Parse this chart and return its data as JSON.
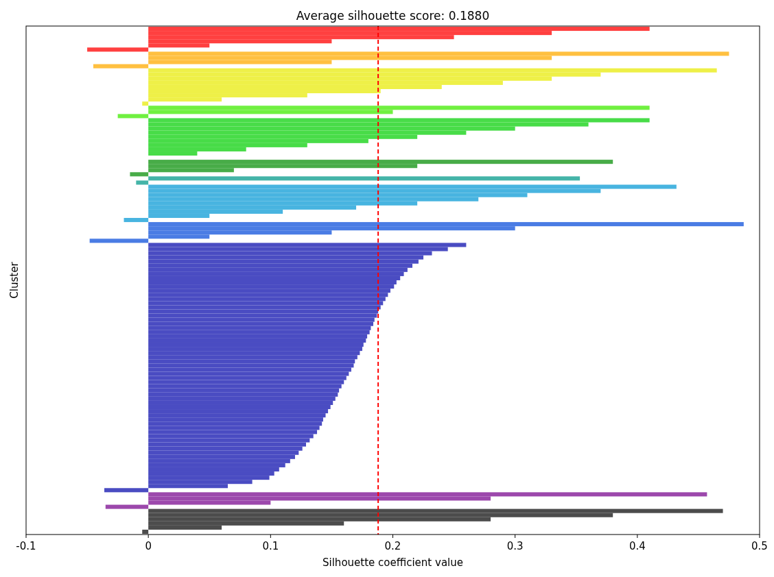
{
  "chart_data": {
    "type": "bar",
    "orientation": "horizontal",
    "title": "Average silhouette score: 0.1880",
    "xlabel": "Silhouette coefficient value",
    "ylabel": "Cluster",
    "xlim": [
      -0.1,
      0.5
    ],
    "xticks": [
      -0.1,
      0,
      0.1,
      0.2,
      0.3,
      0.4,
      0.5
    ],
    "tick_labels": "x",
    "grid": false,
    "categories": [
      null,
      null,
      null,
      null,
      null,
      null,
      null,
      null,
      null,
      null,
      null,
      null,
      null,
      null,
      null,
      null,
      null,
      null,
      null,
      null,
      null,
      null,
      null,
      null,
      null,
      null,
      null,
      null,
      null,
      null,
      null,
      null,
      null,
      null,
      null,
      null,
      null,
      null,
      null,
      null,
      null,
      null,
      null,
      null,
      null,
      null,
      null,
      null,
      null,
      null,
      null,
      null,
      null,
      null,
      null,
      null,
      null,
      null,
      null,
      null,
      null,
      null,
      null,
      null,
      null,
      null,
      null,
      null,
      null,
      null,
      null,
      null,
      null,
      null,
      null,
      null,
      null,
      null,
      null,
      null,
      null,
      null,
      null,
      null,
      null,
      null,
      null,
      null,
      null,
      null,
      null,
      null,
      null,
      null,
      null,
      null,
      null,
      null,
      null,
      null,
      null,
      null,
      null,
      null,
      null,
      null,
      null,
      null,
      null,
      null,
      null,
      null,
      null,
      null,
      null,
      null,
      null,
      null,
      null,
      null,
      null,
      null
    ],
    "values": [
      0.41,
      0.33,
      0.25,
      0.15,
      0.05,
      -0.05,
      0.475,
      0.33,
      0.15,
      -0.045,
      0.465,
      0.37,
      0.33,
      0.29,
      0.24,
      0.19,
      0.13,
      0.06,
      -0.005,
      0.41,
      0.2,
      -0.025,
      0.41,
      0.36,
      0.3,
      0.26,
      0.22,
      0.18,
      0.13,
      0.08,
      0.04,
      0.0,
      0.38,
      0.22,
      0.07,
      -0.015,
      0.353,
      -0.01,
      0.432,
      0.37,
      0.31,
      0.27,
      0.22,
      0.17,
      0.11,
      0.05,
      -0.02,
      0.487,
      0.3,
      0.15,
      0.05,
      -0.048,
      0.26,
      0.245,
      0.232,
      0.225,
      0.221,
      0.216,
      0.212,
      0.209,
      0.206,
      0.203,
      0.201,
      0.198,
      0.196,
      0.194,
      0.192,
      0.19,
      0.188,
      0.187,
      0.185,
      0.184,
      0.182,
      0.181,
      0.179,
      0.178,
      0.176,
      0.175,
      0.173,
      0.171,
      0.169,
      0.168,
      0.166,
      0.164,
      0.162,
      0.16,
      0.158,
      0.156,
      0.155,
      0.153,
      0.151,
      0.149,
      0.147,
      0.145,
      0.143,
      0.142,
      0.14,
      0.138,
      0.135,
      0.132,
      0.129,
      0.126,
      0.123,
      0.12,
      0.116,
      0.112,
      0.107,
      0.103,
      0.099,
      0.085,
      0.065,
      -0.036,
      0.457,
      0.28,
      0.1,
      -0.035,
      0.47,
      0.38,
      0.28,
      0.16,
      0.06,
      -0.005
    ],
    "colors": [
      "#ff4040",
      "#ff4040",
      "#ff4040",
      "#ff4040",
      "#ff4040",
      "#ff4040",
      "#ffc040",
      "#ffc040",
      "#ffc040",
      "#ffc040",
      "#eef048",
      "#eef048",
      "#eef048",
      "#eef048",
      "#eef048",
      "#eef048",
      "#eef048",
      "#eef048",
      "#eef048",
      "#70f040",
      "#70f040",
      "#70f040",
      "#48dc48",
      "#48dc48",
      "#48dc48",
      "#48dc48",
      "#48dc48",
      "#48dc48",
      "#48dc48",
      "#48dc48",
      "#48dc48",
      "#48dc48",
      "#48ac48",
      "#48ac48",
      "#48ac48",
      "#48ac48",
      "#44b4a8",
      "#44b4a8",
      "#48b4e0",
      "#48b4e0",
      "#48b4e0",
      "#48b4e0",
      "#48b4e0",
      "#48b4e0",
      "#48b4e0",
      "#48b4e0",
      "#48b4e0",
      "#4a7ce4",
      "#4a7ce4",
      "#4a7ce4",
      "#4a7ce4",
      "#4a7ce4",
      "#4a4cc2",
      "#4a4cc2",
      "#4a4cc2",
      "#4a4cc2",
      "#4a4cc2",
      "#4a4cc2",
      "#4a4cc2",
      "#4a4cc2",
      "#4a4cc2",
      "#4a4cc2",
      "#4a4cc2",
      "#4a4cc2",
      "#4a4cc2",
      "#4a4cc2",
      "#4a4cc2",
      "#4a4cc2",
      "#4a4cc2",
      "#4a4cc2",
      "#4a4cc2",
      "#4a4cc2",
      "#4a4cc2",
      "#4a4cc2",
      "#4a4cc2",
      "#4a4cc2",
      "#4a4cc2",
      "#4a4cc2",
      "#4a4cc2",
      "#4a4cc2",
      "#4a4cc2",
      "#4a4cc2",
      "#4a4cc2",
      "#4a4cc2",
      "#4a4cc2",
      "#4a4cc2",
      "#4a4cc2",
      "#4a4cc2",
      "#4a4cc2",
      "#4a4cc2",
      "#4a4cc2",
      "#4a4cc2",
      "#4a4cc2",
      "#4a4cc2",
      "#4a4cc2",
      "#4a4cc2",
      "#4a4cc2",
      "#4a4cc2",
      "#4a4cc2",
      "#4a4cc2",
      "#4a4cc2",
      "#4a4cc2",
      "#4a4cc2",
      "#4a4cc2",
      "#4a4cc2",
      "#4a4cc2",
      "#4a4cc2",
      "#4a4cc2",
      "#4a4cc2",
      "#4a4cc2",
      "#4a4cc2",
      "#4a4cc2",
      "#9c48ac",
      "#9c48ac",
      "#9c48ac",
      "#9c48ac",
      "#4c4c4c",
      "#4c4c4c",
      "#4c4c4c",
      "#4c4c4c",
      "#4c4c4c",
      "#4c4c4c"
    ],
    "ref_lines": [
      {
        "axis": "x",
        "value": 0.188,
        "color": "#ff0000",
        "line_style": "dashed"
      }
    ]
  }
}
